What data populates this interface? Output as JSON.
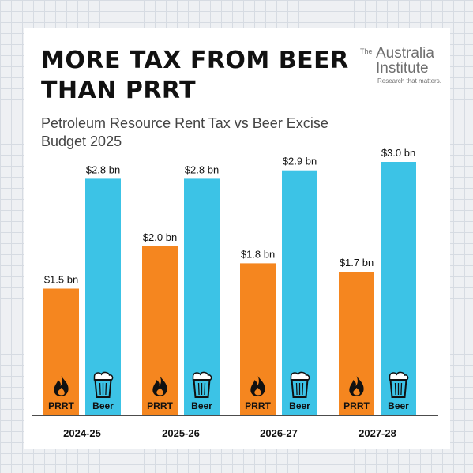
{
  "title_lines": [
    "MORE TAX FROM BEER",
    "THAN PRRT"
  ],
  "subtitle_lines": [
    "Petroleum Resource Rent Tax vs Beer Excise",
    "Budget 2025"
  ],
  "logo": {
    "the": "The",
    "name_line1": "Australia",
    "name_line2": "Institute",
    "tagline": "Research that matters."
  },
  "colors": {
    "prrt": "#f5861f",
    "beer": "#3cc3e6",
    "grid": "#d6dbe2"
  },
  "icons": {
    "prrt": "flame-icon",
    "beer": "beer-glass-icon"
  },
  "chart_data": {
    "type": "bar",
    "categories": [
      "2024-25",
      "2025-26",
      "2026-27",
      "2027-28"
    ],
    "series": [
      {
        "name": "PRRT",
        "values": [
          1.5,
          2.0,
          1.8,
          1.7
        ],
        "labels": [
          "$1.5 bn",
          "$2.0 bn",
          "$1.8 bn",
          "$1.7 bn"
        ]
      },
      {
        "name": "Beer",
        "values": [
          2.8,
          2.8,
          2.9,
          3.0
        ],
        "labels": [
          "$2.8 bn",
          "$2.8 bn",
          "$2.9 bn",
          "$3.0 bn"
        ]
      }
    ],
    "ylim": [
      0,
      3.0
    ],
    "grid": false,
    "legend": "none"
  }
}
